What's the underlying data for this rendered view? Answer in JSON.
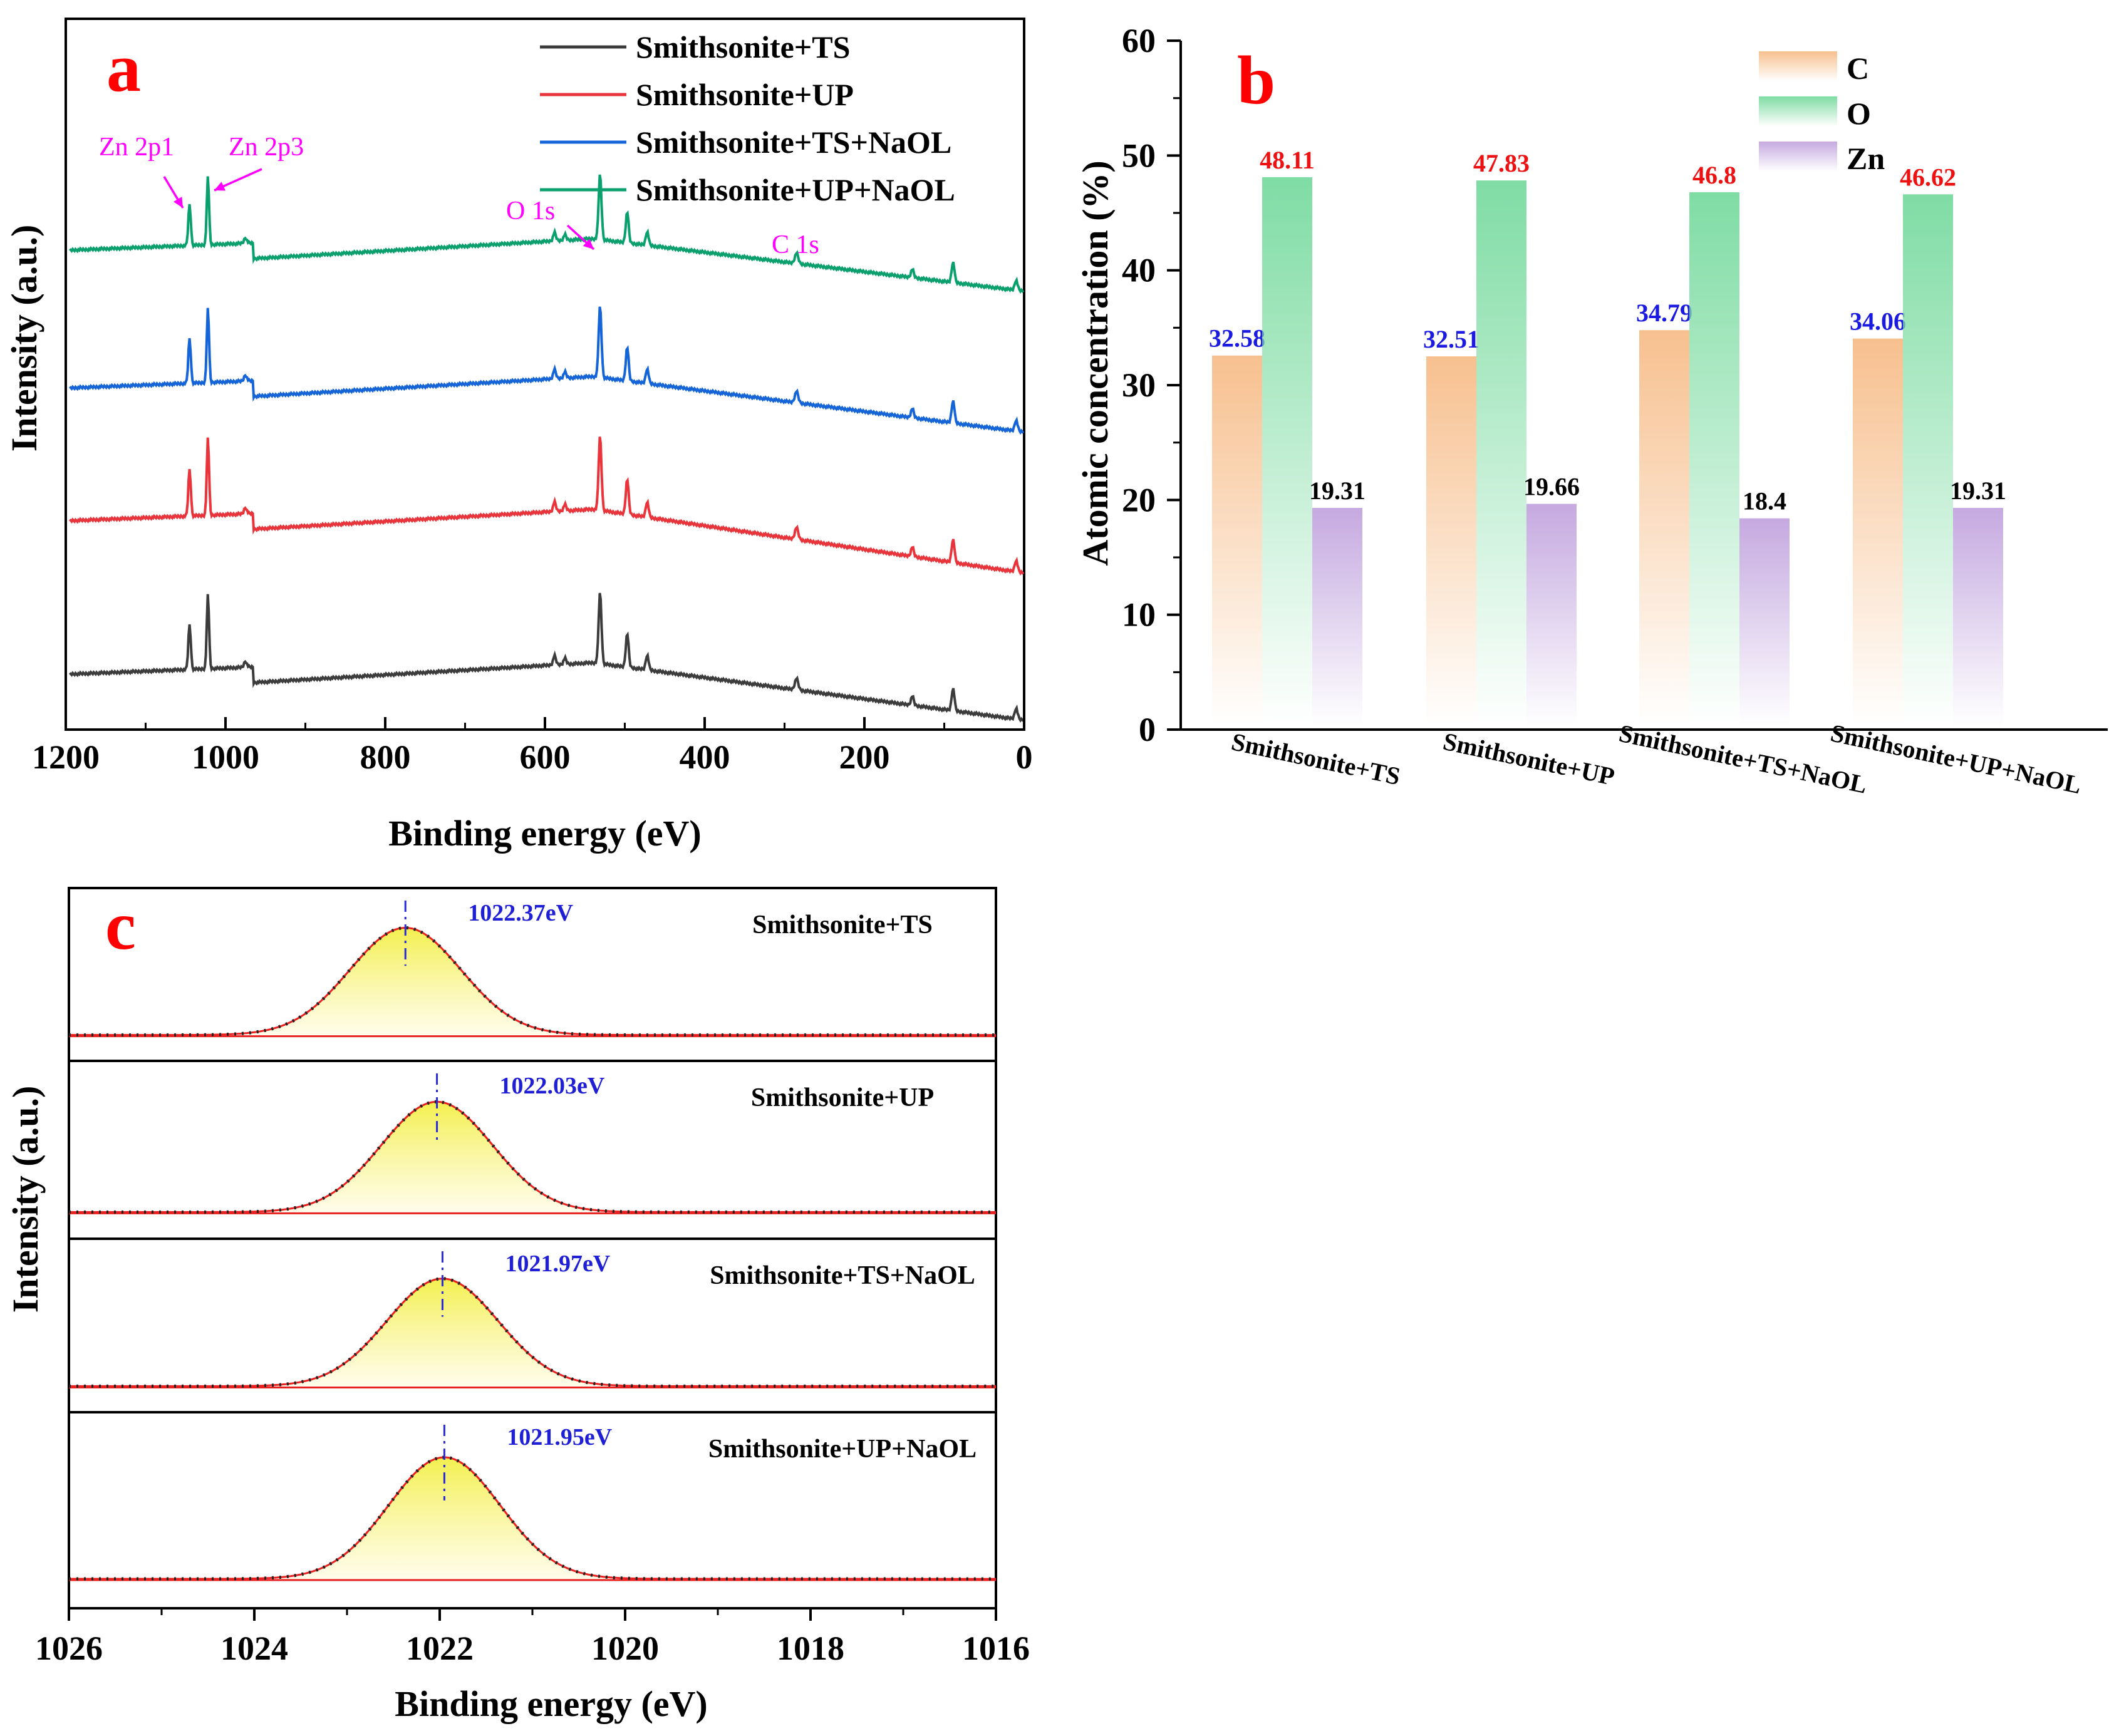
{
  "chart_data": [
    {
      "panel": "a",
      "type": "line",
      "title": "",
      "xlabel": "Binding energy (eV)",
      "ylabel": "Intensity (a.u.)",
      "xlim": [
        1200,
        0
      ],
      "x_ticks": [
        "1200",
        "1000",
        "800",
        "600",
        "400",
        "200",
        "0"
      ],
      "series": [
        {
          "name": "Smithsonite+TS",
          "color": "#3c3c3c"
        },
        {
          "name": "Smithsonite+UP",
          "color": "#e8343a"
        },
        {
          "name": "Smithsonite+TS+NaOL",
          "color": "#1565d8"
        },
        {
          "name": "Smithsonite+UP+NaOL",
          "color": "#0aa06e"
        }
      ],
      "peaks": [
        {
          "label": "Zn 2p1",
          "energy": 1045
        },
        {
          "label": "Zn 2p3",
          "energy": 1022
        },
        {
          "label": "O 1s",
          "energy": 531
        },
        {
          "label": "C 1s",
          "energy": 285
        }
      ],
      "secondary_peaks": [
        {
          "energy": 975,
          "height": 0.08
        },
        {
          "energy": 588,
          "height": 0.12
        },
        {
          "energy": 575,
          "height": 0.08
        },
        {
          "energy": 497,
          "height": 0.45
        },
        {
          "energy": 472,
          "height": 0.2
        },
        {
          "energy": 140,
          "height": 0.12
        },
        {
          "energy": 89,
          "height": 0.3
        },
        {
          "energy": 10,
          "height": 0.15
        }
      ]
    },
    {
      "panel": "b",
      "type": "bar",
      "title": "",
      "xlabel": "",
      "ylabel": "Atomic concentration (%)",
      "ylim": [
        0,
        60
      ],
      "y_ticks": [
        "0",
        "10",
        "20",
        "30",
        "40",
        "50",
        "60"
      ],
      "categories": [
        "Smithsonite+TS",
        "Smithsonite+UP",
        "Smithsonite+TS+NaOL",
        "Smithsonite+UP+NaOL"
      ],
      "series": [
        {
          "name": "C",
          "values": [
            32.58,
            32.51,
            34.79,
            34.06
          ],
          "labels": [
            "32.58",
            "32.51",
            "34.79",
            "34.06"
          ],
          "color": "#f7c08f",
          "label_color": "#1a1ae0"
        },
        {
          "name": "O",
          "values": [
            48.11,
            47.83,
            46.8,
            46.62
          ],
          "labels": [
            "48.11",
            "47.83",
            "46.8",
            "46.62"
          ],
          "color": "#7fdca4",
          "label_color": "#ee1111"
        },
        {
          "name": "Zn",
          "values": [
            19.31,
            19.66,
            18.4,
            19.31
          ],
          "labels": [
            "19.31",
            "19.66",
            "18.4",
            "19.31"
          ],
          "color": "#cdb5e3",
          "label_color": "#000000"
        }
      ],
      "legend": "top-right"
    },
    {
      "panel": "c",
      "type": "line",
      "title": "",
      "xlabel": "Binding energy (eV)",
      "ylabel": "Intensity (a.u.)",
      "xlim": [
        1026,
        1016
      ],
      "x_ticks": [
        "1026",
        "1024",
        "1022",
        "1020",
        "1018",
        "1016"
      ],
      "subplots": [
        {
          "name": "Smithsonite+TS",
          "peak": 1022.37,
          "peak_label": "1022.37eV"
        },
        {
          "name": "Smithsonite+UP",
          "peak": 1022.03,
          "peak_label": "1022.03eV"
        },
        {
          "name": "Smithsonite+TS+NaOL",
          "peak": 1021.97,
          "peak_label": "1021.97eV"
        },
        {
          "name": "Smithsonite+UP+NaOL",
          "peak": 1021.95,
          "peak_label": "1021.95eV"
        }
      ]
    }
  ]
}
